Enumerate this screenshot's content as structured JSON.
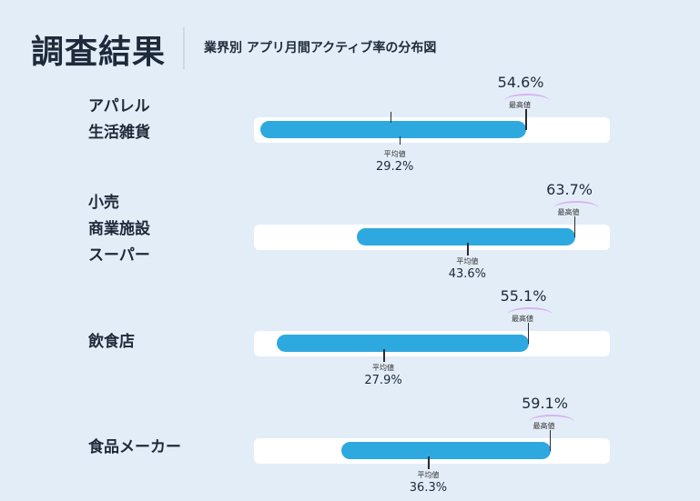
{
  "header": {
    "title": "調査結果",
    "subtitle": "業界別 アプリ月間アクティブ率の分布図"
  },
  "labels": {
    "max": "最高値",
    "avg": "平均値"
  },
  "colors": {
    "bar": "#2ea9df",
    "track": "#ffffff",
    "accent_arc": "#d9b3f0",
    "background": "#e3edf8"
  },
  "chart_data": {
    "type": "bar",
    "orientation": "horizontal-range",
    "title": "業界別 アプリ月間アクティブ率の分布図",
    "xlim": [
      0,
      70
    ],
    "categories": [
      {
        "lines": [
          "アパレル",
          "生活雑貨"
        ],
        "min": 5,
        "max": 54.6,
        "avg": 29.2,
        "max_label": "54.6%",
        "avg_label": "29.2%"
      },
      {
        "lines": [
          "小売",
          "商業施設",
          "スーパー"
        ],
        "min": 23,
        "max": 63.7,
        "avg": 43.6,
        "max_label": "63.7%",
        "avg_label": "43.6%"
      },
      {
        "lines": [
          "飲食店"
        ],
        "min": 8,
        "max": 55.1,
        "avg": 27.9,
        "max_label": "55.1%",
        "avg_label": "27.9%"
      },
      {
        "lines": [
          "食品メーカー"
        ],
        "min": 20,
        "max": 59.1,
        "avg": 36.3,
        "max_label": "59.1%",
        "avg_label": "36.3%"
      }
    ]
  }
}
